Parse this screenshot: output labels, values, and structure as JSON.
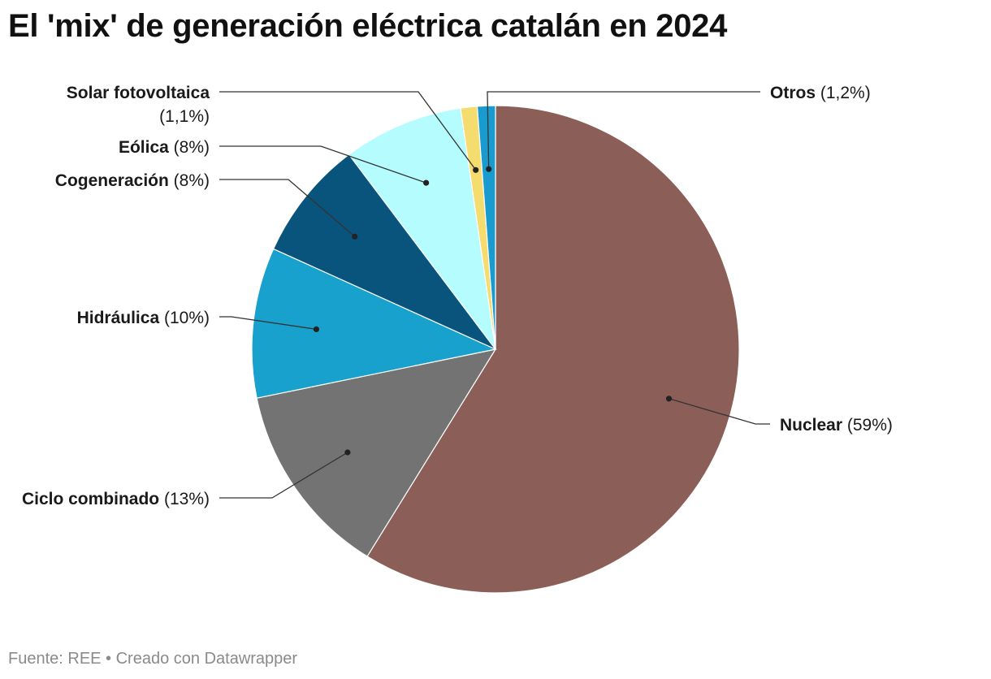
{
  "chart_data": {
    "type": "pie",
    "title": "El 'mix' de generación eléctrica catalán en 2024",
    "slices": [
      {
        "name": "Nuclear",
        "value": 59,
        "label_pct": "(59%)",
        "color": "#8b5e57"
      },
      {
        "name": "Ciclo combinado",
        "value": 13,
        "label_pct": "(13%)",
        "color": "#737373"
      },
      {
        "name": "Hidráulica",
        "value": 10,
        "label_pct": "(10%)",
        "color": "#18a1cd"
      },
      {
        "name": "Cogeneración",
        "value": 8,
        "label_pct": "(8%)",
        "color": "#09547c"
      },
      {
        "name": "Eólica",
        "value": 8,
        "label_pct": "(8%)",
        "color": "#b5fcff"
      },
      {
        "name": "Solar fotovoltaica",
        "value": 1.1,
        "label_pct": "(1,1%)",
        "color": "#f5dc6e"
      },
      {
        "name": "Otros",
        "value": 1.2,
        "label_pct": "(1,2%)",
        "color": "#1a9bd0"
      }
    ]
  },
  "footer": {
    "source_text": "Fuente: REE • Creado con Datawrapper"
  }
}
